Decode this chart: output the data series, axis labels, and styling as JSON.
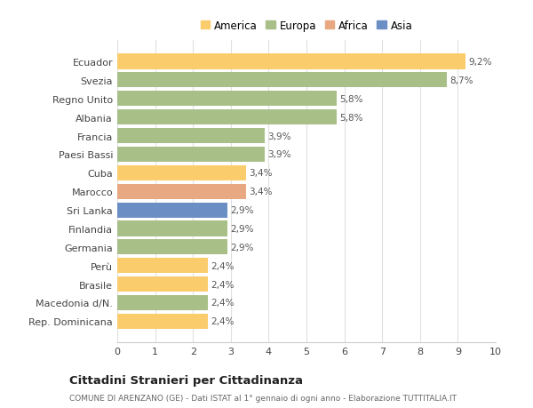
{
  "categories": [
    "Ecuador",
    "Svezia",
    "Regno Unito",
    "Albania",
    "Francia",
    "Paesi Bassi",
    "Cuba",
    "Marocco",
    "Sri Lanka",
    "Finlandia",
    "Germania",
    "Perù",
    "Brasile",
    "Macedonia d/N.",
    "Rep. Dominicana"
  ],
  "values": [
    9.2,
    8.7,
    5.8,
    5.8,
    3.9,
    3.9,
    3.4,
    3.4,
    2.9,
    2.9,
    2.9,
    2.4,
    2.4,
    2.4,
    2.4
  ],
  "labels": [
    "9,2%",
    "8,7%",
    "5,8%",
    "5,8%",
    "3,9%",
    "3,9%",
    "3,4%",
    "3,4%",
    "2,9%",
    "2,9%",
    "2,9%",
    "2,4%",
    "2,4%",
    "2,4%",
    "2,4%"
  ],
  "colors": [
    "#FACC6B",
    "#A8C088",
    "#A8C088",
    "#A8C088",
    "#A8C088",
    "#A8C088",
    "#FACC6B",
    "#E8A882",
    "#6B8EC4",
    "#A8C088",
    "#A8C088",
    "#FACC6B",
    "#FACC6B",
    "#A8C088",
    "#FACC6B"
  ],
  "legend_labels": [
    "America",
    "Europa",
    "Africa",
    "Asia"
  ],
  "legend_colors": [
    "#FACC6B",
    "#A8C088",
    "#E8A882",
    "#6B8EC4"
  ],
  "title": "Cittadini Stranieri per Cittadinanza",
  "subtitle": "COMUNE DI ARENZANO (GE) - Dati ISTAT al 1° gennaio di ogni anno - Elaborazione TUTTITALIA.IT",
  "xlim": [
    0,
    10
  ],
  "xticks": [
    0,
    1,
    2,
    3,
    4,
    5,
    6,
    7,
    8,
    9,
    10
  ],
  "background_color": "#ffffff",
  "grid_color": "#e0e0e0",
  "bar_height": 0.82
}
